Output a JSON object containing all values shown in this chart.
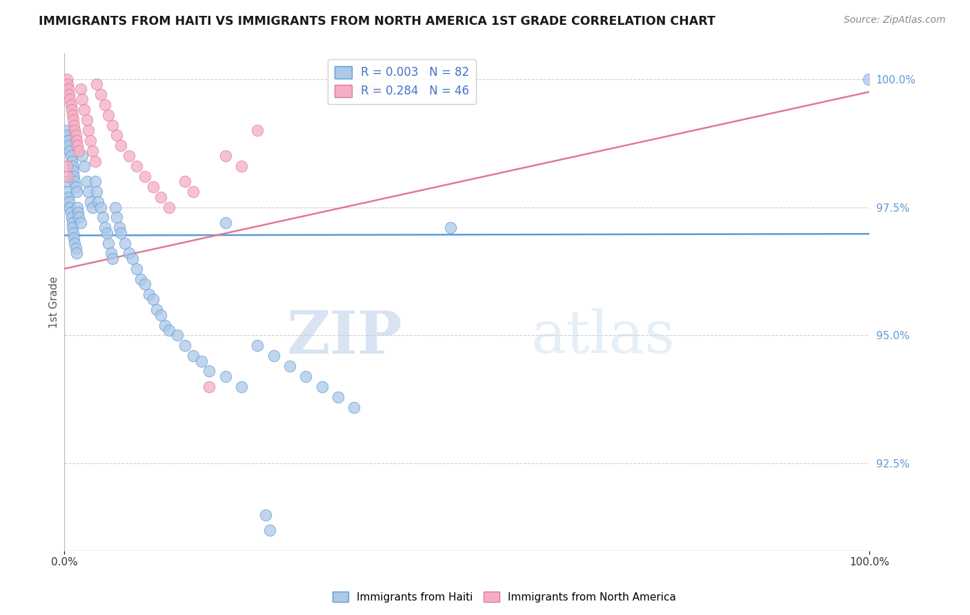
{
  "title": "IMMIGRANTS FROM HAITI VS IMMIGRANTS FROM NORTH AMERICA 1ST GRADE CORRELATION CHART",
  "source": "Source: ZipAtlas.com",
  "ylabel_left": "1st Grade",
  "legend_label_blue": "Immigrants from Haiti",
  "legend_label_pink": "Immigrants from North America",
  "R_blue": 0.003,
  "N_blue": 82,
  "R_pink": 0.284,
  "N_pink": 46,
  "xlim": [
    0.0,
    1.0
  ],
  "ylim": [
    0.908,
    1.005
  ],
  "xticklabels": [
    "0.0%",
    "100.0%"
  ],
  "yticklabels_right": [
    "100.0%",
    "97.5%",
    "95.0%",
    "92.5%"
  ],
  "ytick_right_vals": [
    1.0,
    0.975,
    0.95,
    0.925
  ],
  "color_blue": "#adc8e8",
  "color_pink": "#f4aec4",
  "color_blue_dark": "#4472c4",
  "line_blue": "#5b9bd5",
  "line_pink": "#e07898",
  "watermark_zip": "ZIP",
  "watermark_atlas": "atlas",
  "background_color": "#ffffff",
  "grid_color": "#cccccc",
  "blue_trend_x": [
    0.0,
    1.0
  ],
  "blue_trend_y": [
    0.9695,
    0.9698
  ],
  "pink_trend_x": [
    0.0,
    1.0
  ],
  "pink_trend_y": [
    0.963,
    0.9975
  ],
  "blue_x": [
    0.003,
    0.004,
    0.005,
    0.006,
    0.007,
    0.008,
    0.009,
    0.01,
    0.01,
    0.011,
    0.012,
    0.013,
    0.014,
    0.015,
    0.016,
    0.017,
    0.018,
    0.02,
    0.022,
    0.025,
    0.028,
    0.03,
    0.032,
    0.035,
    0.038,
    0.04,
    0.042,
    0.045,
    0.048,
    0.05,
    0.053,
    0.055,
    0.058,
    0.06,
    0.063,
    0.065,
    0.068,
    0.07,
    0.075,
    0.08,
    0.085,
    0.09,
    0.095,
    0.1,
    0.105,
    0.11,
    0.115,
    0.12,
    0.125,
    0.13,
    0.14,
    0.15,
    0.16,
    0.17,
    0.18,
    0.2,
    0.22,
    0.24,
    0.26,
    0.28,
    0.3,
    0.32,
    0.34,
    0.36,
    0.003,
    0.004,
    0.005,
    0.006,
    0.007,
    0.008,
    0.009,
    0.01,
    0.011,
    0.012,
    0.013,
    0.014,
    0.015,
    0.2,
    0.48,
    0.999,
    0.25,
    0.255
  ],
  "blue_y": [
    0.98,
    0.978,
    0.977,
    0.976,
    0.975,
    0.974,
    0.973,
    0.972,
    0.971,
    0.97,
    0.969,
    0.968,
    0.967,
    0.966,
    0.975,
    0.974,
    0.973,
    0.972,
    0.985,
    0.983,
    0.98,
    0.978,
    0.976,
    0.975,
    0.98,
    0.978,
    0.976,
    0.975,
    0.973,
    0.971,
    0.97,
    0.968,
    0.966,
    0.965,
    0.975,
    0.973,
    0.971,
    0.97,
    0.968,
    0.966,
    0.965,
    0.963,
    0.961,
    0.96,
    0.958,
    0.957,
    0.955,
    0.954,
    0.952,
    0.951,
    0.95,
    0.948,
    0.946,
    0.945,
    0.943,
    0.942,
    0.94,
    0.948,
    0.946,
    0.944,
    0.942,
    0.94,
    0.938,
    0.936,
    0.99,
    0.989,
    0.988,
    0.987,
    0.986,
    0.985,
    0.984,
    0.983,
    0.982,
    0.981,
    0.98,
    0.979,
    0.978,
    0.972,
    0.971,
    1.0,
    0.915,
    0.912
  ],
  "pink_x": [
    0.003,
    0.004,
    0.005,
    0.006,
    0.007,
    0.008,
    0.009,
    0.01,
    0.011,
    0.012,
    0.013,
    0.014,
    0.015,
    0.016,
    0.018,
    0.02,
    0.022,
    0.025,
    0.028,
    0.03,
    0.032,
    0.035,
    0.038,
    0.04,
    0.045,
    0.05,
    0.055,
    0.06,
    0.065,
    0.07,
    0.08,
    0.09,
    0.1,
    0.11,
    0.12,
    0.13,
    0.15,
    0.16,
    0.18,
    0.2,
    0.22,
    0.24,
    0.38,
    0.42,
    0.003,
    0.004
  ],
  "pink_y": [
    1.0,
    0.999,
    0.998,
    0.997,
    0.996,
    0.995,
    0.994,
    0.993,
    0.992,
    0.991,
    0.99,
    0.989,
    0.988,
    0.987,
    0.986,
    0.998,
    0.996,
    0.994,
    0.992,
    0.99,
    0.988,
    0.986,
    0.984,
    0.999,
    0.997,
    0.995,
    0.993,
    0.991,
    0.989,
    0.987,
    0.985,
    0.983,
    0.981,
    0.979,
    0.977,
    0.975,
    0.98,
    0.978,
    0.94,
    0.985,
    0.983,
    0.99,
    0.998,
    0.999,
    0.983,
    0.981
  ]
}
